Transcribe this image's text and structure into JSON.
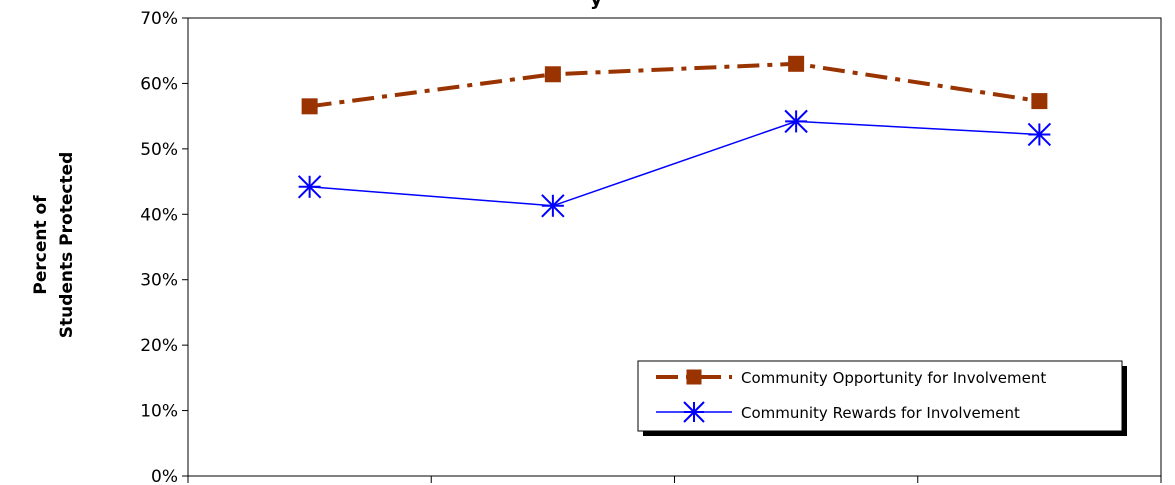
{
  "chart_data": {
    "type": "line",
    "title_fragment": "y",
    "ylabel_line1": "Percent of",
    "ylabel_line2": "Students Protected",
    "ylim": [
      0,
      70
    ],
    "yticks": [
      "0%",
      "10%",
      "20%",
      "30%",
      "40%",
      "50%",
      "60%",
      "70%"
    ],
    "ytick_values": [
      0,
      10,
      20,
      30,
      40,
      50,
      60,
      70
    ],
    "x_points": 4,
    "x_category_count": 4,
    "grid": false,
    "legend_position": "bottom-right",
    "series": [
      {
        "name": "Community Opportunity for Involvement",
        "values": [
          56.5,
          61.4,
          63.0,
          57.3
        ],
        "color": "#993300",
        "marker": "square",
        "line_style": "dashed"
      },
      {
        "name": "Community Rewards for Involvement",
        "values": [
          44.2,
          41.3,
          54.2,
          52.2
        ],
        "color": "#0000ff",
        "marker": "asterisk",
        "line_style": "solid"
      }
    ]
  }
}
